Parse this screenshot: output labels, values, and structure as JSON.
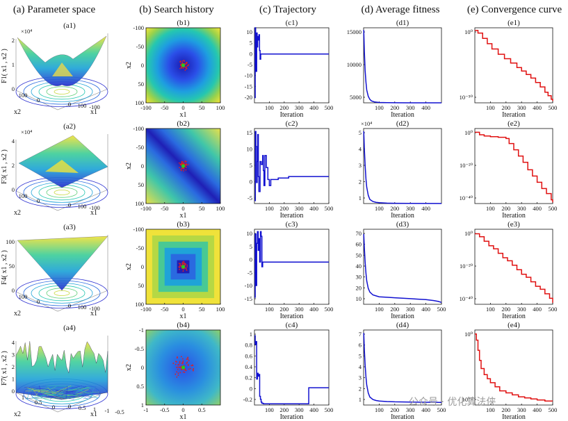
{
  "column_headers": [
    "(a) Parameter space",
    "(b) Search history",
    "(c) Trajectory",
    "(d) Average fitness",
    "(e) Convergence curve"
  ],
  "watermark": "公众号 · 优化算法侠",
  "colors": {
    "trajectory": "#1010d0",
    "fitness": "#1010d0",
    "convergence": "#e01010",
    "best_point": "#22cc22",
    "history_points": "#e02020"
  },
  "rows": [
    {
      "a": {
        "title": "(a1)",
        "zlabel": "F1( x1 , x2 )",
        "exponent": "×10⁴",
        "zticks": [
          "0",
          "1",
          "2"
        ],
        "xlabel": "x1",
        "ylabel": "x2",
        "xticks": [
          "0",
          "100",
          "-100"
        ],
        "yticks": [
          "100",
          "0"
        ]
      },
      "b": {
        "title": "(b1)",
        "xlabel": "x1",
        "ylabel": "x2",
        "xticks": [
          "-100",
          "-50",
          "0",
          "50",
          "100"
        ],
        "yticks": [
          "-100",
          "-50",
          "0",
          "50",
          "100"
        ],
        "pattern": "radial"
      },
      "c": {
        "title": "(c1)",
        "xlabel": "Iteration",
        "xticks": [
          "100",
          "200",
          "300",
          "400",
          "500"
        ],
        "yticks": [
          "10",
          "5",
          "0",
          "-5",
          "-10",
          "-15",
          "-20"
        ]
      },
      "d": {
        "title": "(d1)",
        "xlabel": "Iteration",
        "xticks": [
          "100",
          "200",
          "300",
          "400"
        ],
        "yticks": [
          "15000",
          "10000",
          "5000"
        ]
      },
      "e": {
        "title": "(e1)",
        "xlabel": "Iteration",
        "xticks": [
          "100",
          "200",
          "300",
          "400",
          "500"
        ],
        "yticks": [
          "10⁰",
          "10⁻⁵⁰"
        ]
      }
    },
    {
      "a": {
        "title": "(a2)",
        "zlabel": "F3( x1 , x2 )",
        "exponent": "×10⁴",
        "zticks": [
          "0",
          "2",
          "4"
        ],
        "xlabel": "x1",
        "ylabel": "x2",
        "xticks": [
          "0",
          "100",
          "-100"
        ],
        "yticks": [
          "100",
          "0"
        ]
      },
      "b": {
        "title": "(b2)",
        "xlabel": "x1",
        "ylabel": "x2",
        "xticks": [
          "-100",
          "-50",
          "0",
          "50",
          "100"
        ],
        "yticks": [
          "-100",
          "-50",
          "0",
          "50",
          "100"
        ],
        "pattern": "diagonal"
      },
      "c": {
        "title": "(c2)",
        "xlabel": "Iteration",
        "xticks": [
          "100",
          "200",
          "300",
          "400",
          "500"
        ],
        "yticks": [
          "15",
          "10",
          "5",
          "0",
          "-5"
        ]
      },
      "d": {
        "title": "(d2)",
        "xlabel": "Iteration",
        "exponent": "×10⁴",
        "xticks": [
          "100",
          "200",
          "300",
          "400"
        ],
        "yticks": [
          "5",
          "4",
          "3",
          "2",
          "1"
        ]
      },
      "e": {
        "title": "(e2)",
        "xlabel": "Iteration",
        "xticks": [
          "100",
          "200",
          "300",
          "400",
          "500"
        ],
        "yticks": [
          "10⁰",
          "10⁻²⁰",
          "10⁻⁴⁰"
        ]
      }
    },
    {
      "a": {
        "title": "(a3)",
        "zlabel": "F4( x1 , x2 )",
        "exponent": "",
        "zticks": [
          "0",
          "50",
          "100"
        ],
        "xlabel": "x1",
        "ylabel": "x2",
        "xticks": [
          "0",
          "100",
          "-100"
        ],
        "yticks": [
          "100",
          "0"
        ]
      },
      "b": {
        "title": "(b3)",
        "xlabel": "x1",
        "ylabel": "x2",
        "xticks": [
          "-100",
          "-50",
          "0",
          "50",
          "100"
        ],
        "yticks": [
          "-100",
          "-50",
          "0",
          "50",
          "100"
        ],
        "pattern": "square"
      },
      "c": {
        "title": "(c3)",
        "xlabel": "Iteration",
        "xticks": [
          "100",
          "200",
          "300",
          "400",
          "500"
        ],
        "yticks": [
          "10",
          "5",
          "0",
          "-5",
          "-10",
          "-15"
        ]
      },
      "d": {
        "title": "(d3)",
        "xlabel": "Iteration",
        "xticks": [
          "100",
          "200",
          "300",
          "400",
          "500"
        ],
        "yticks": [
          "70",
          "60",
          "50",
          "40",
          "30",
          "20",
          "10"
        ]
      },
      "e": {
        "title": "(e3)",
        "xlabel": "Iteration",
        "xticks": [
          "100",
          "200",
          "300",
          "400",
          "500"
        ],
        "yticks": [
          "10⁰",
          "10⁻²⁰",
          "10⁻⁴⁰"
        ]
      }
    },
    {
      "a": {
        "title": "(a4)",
        "zlabel": "F7( x1 , x2 )",
        "exponent": "",
        "zticks": [
          "0",
          "1",
          "2",
          "3",
          "4"
        ],
        "xlabel": "x1",
        "ylabel": "x2",
        "xticks": [
          "0",
          "0.5",
          "1",
          "-1",
          "-0.5"
        ],
        "yticks": [
          "1",
          "0.5",
          "0"
        ]
      },
      "b": {
        "title": "(b4)",
        "xlabel": "x1",
        "ylabel": "x2",
        "xticks": [
          "-1",
          "-0.5",
          "0",
          "0.5"
        ],
        "yticks": [
          "-1",
          "-0.5",
          "0",
          "0.5",
          "1"
        ],
        "pattern": "noise"
      },
      "c": {
        "title": "(c4)",
        "xlabel": "Iteration",
        "xticks": [
          "100",
          "200",
          "300",
          "400",
          "500"
        ],
        "yticks": [
          "1",
          "0.8",
          "0.6",
          "0.4",
          "0.2",
          "0",
          "-0.2"
        ]
      },
      "d": {
        "title": "(d4)",
        "xlabel": "Iteration",
        "xticks": [
          "100",
          "200",
          "300",
          "400",
          "500"
        ],
        "yticks": [
          "7",
          "6",
          "5",
          "4",
          "3",
          "2",
          "1"
        ]
      },
      "e": {
        "title": "(e4)",
        "xlabel": "Iteration",
        "xticks": [
          "100",
          "200",
          "300",
          "400",
          "500"
        ],
        "yticks": [
          "10⁰",
          "10⁻²"
        ]
      }
    }
  ],
  "chart_data": [
    {
      "type": "line",
      "title": "(c1)",
      "xlabel": "Iteration",
      "xlim": [
        0,
        500
      ],
      "ylim": [
        -28,
        15
      ],
      "series": [
        {
          "name": "trajectory",
          "x": [
            1,
            5,
            8,
            12,
            15,
            18,
            22,
            26,
            30,
            34,
            38,
            42,
            500
          ],
          "y": [
            -25,
            15,
            5,
            -10,
            12,
            4,
            10,
            8,
            11,
            2,
            -3,
            0,
            0
          ]
        }
      ]
    },
    {
      "type": "line",
      "title": "(d1)",
      "xlabel": "Iteration",
      "xlim": [
        0,
        500
      ],
      "ylim": [
        0,
        17500
      ],
      "series": [
        {
          "name": "average fitness",
          "x": [
            1,
            5,
            10,
            15,
            20,
            30,
            40,
            50,
            70,
            100,
            150,
            200,
            300,
            500
          ],
          "y": [
            17000,
            12000,
            7500,
            4800,
            3000,
            1500,
            800,
            450,
            200,
            80,
            30,
            10,
            5,
            2
          ]
        }
      ]
    },
    {
      "type": "line",
      "title": "(e1)",
      "xlabel": "Iteration",
      "xlim": [
        0,
        500
      ],
      "ylim": [
        -80,
        5
      ],
      "ylog": true,
      "series": [
        {
          "name": "best fitness (log10)",
          "x": [
            0,
            20,
            50,
            80,
            110,
            150,
            190,
            230,
            270,
            300,
            330,
            360,
            390,
            420,
            450,
            470,
            490,
            500
          ],
          "y": [
            2,
            -1,
            -7,
            -13,
            -19,
            -25,
            -30,
            -35,
            -40,
            -44,
            -48,
            -52,
            -57,
            -62,
            -68,
            -72,
            -76,
            -78
          ]
        }
      ]
    },
    {
      "type": "line",
      "title": "(c2)",
      "xlabel": "Iteration",
      "xlim": [
        0,
        500
      ],
      "ylim": [
        -9,
        16
      ],
      "series": [
        {
          "name": "trajectory",
          "x": [
            1,
            6,
            10,
            14,
            18,
            22,
            26,
            30,
            38,
            46,
            55,
            60,
            64,
            70,
            80,
            90,
            100,
            110,
            130,
            160,
            200,
            230,
            240,
            500
          ],
          "y": [
            -8,
            15,
            10,
            -2,
            5,
            14,
            0,
            -5,
            5,
            4,
            7,
            2,
            -3,
            7,
            3,
            -1,
            -3,
            -1,
            -1,
            -0.5,
            -0.5,
            0,
            0,
            0
          ]
        }
      ]
    },
    {
      "type": "line",
      "title": "(d2)",
      "xlabel": "Iteration",
      "xlim": [
        0,
        500
      ],
      "ylim": [
        0,
        55000
      ],
      "series": [
        {
          "name": "average fitness",
          "x": [
            1,
            5,
            10,
            15,
            20,
            30,
            40,
            60,
            80,
            100,
            150,
            200,
            300,
            500
          ],
          "y": [
            53000,
            40000,
            28000,
            18000,
            12000,
            6000,
            3000,
            1500,
            900,
            600,
            300,
            200,
            100,
            50
          ]
        }
      ]
    },
    {
      "type": "line",
      "title": "(e2)",
      "xlabel": "Iteration",
      "xlim": [
        0,
        500
      ],
      "ylim": [
        -55,
        5
      ],
      "ylog": true,
      "series": [
        {
          "name": "best fitness (log10)",
          "x": [
            0,
            30,
            60,
            100,
            150,
            200,
            220,
            250,
            280,
            310,
            340,
            370,
            400,
            430,
            460,
            490,
            500
          ],
          "y": [
            2,
            0,
            -1,
            -1.5,
            -2,
            -3,
            -7,
            -12,
            -17,
            -22,
            -28,
            -33,
            -38,
            -43,
            -47,
            -52,
            -54
          ]
        }
      ]
    },
    {
      "type": "line",
      "title": "(c3)",
      "xlabel": "Iteration",
      "xlim": [
        0,
        500
      ],
      "ylim": [
        -18,
        14
      ],
      "series": [
        {
          "name": "trajectory",
          "x": [
            1,
            5,
            10,
            15,
            20,
            25,
            30,
            35,
            40,
            45,
            50,
            55,
            60,
            500
          ],
          "y": [
            -15,
            12,
            -10,
            8,
            13,
            5,
            10,
            0,
            13,
            11,
            -2,
            0,
            0,
            0
          ]
        }
      ]
    },
    {
      "type": "line",
      "title": "(d3)",
      "xlabel": "Iteration",
      "xlim": [
        0,
        500
      ],
      "ylim": [
        0,
        80
      ],
      "series": [
        {
          "name": "average fitness",
          "x": [
            1,
            5,
            10,
            15,
            20,
            30,
            40,
            60,
            80,
            100,
            150,
            200,
            250,
            300,
            350,
            400,
            450,
            480,
            500
          ],
          "y": [
            75,
            60,
            45,
            33,
            25,
            17,
            13,
            10,
            9,
            8,
            7.5,
            7,
            6.5,
            6,
            5.5,
            5,
            4,
            3,
            2
          ]
        }
      ]
    },
    {
      "type": "line",
      "title": "(e3)",
      "xlabel": "Iteration",
      "xlim": [
        0,
        500
      ],
      "ylim": [
        -45,
        5
      ],
      "ylog": true,
      "series": [
        {
          "name": "best fitness (log10)",
          "x": [
            0,
            30,
            60,
            90,
            120,
            150,
            180,
            210,
            240,
            270,
            300,
            330,
            360,
            390,
            420,
            450,
            480,
            500
          ],
          "y": [
            2,
            0,
            -3,
            -6,
            -8,
            -11,
            -14,
            -16,
            -19,
            -22,
            -25,
            -27,
            -30,
            -33,
            -35,
            -38,
            -41,
            -44
          ]
        }
      ]
    },
    {
      "type": "line",
      "title": "(c4)",
      "xlabel": "Iteration",
      "xlim": [
        0,
        500
      ],
      "ylim": [
        -0.25,
        1.05
      ],
      "series": [
        {
          "name": "trajectory",
          "x": [
            1,
            5,
            10,
            15,
            20,
            25,
            30,
            35,
            40,
            45,
            50,
            55,
            60,
            70,
            80,
            100,
            200,
            300,
            360,
            365,
            370,
            500
          ],
          "y": [
            0.95,
            0.8,
            0.85,
            0.2,
            0.3,
            0.25,
            0.28,
            -0.1,
            -0.15,
            -0.2,
            -0.22,
            -0.22,
            -0.23,
            -0.23,
            -0.23,
            -0.23,
            -0.23,
            -0.23,
            -0.23,
            0.05,
            0.05,
            0.05
          ]
        }
      ]
    },
    {
      "type": "line",
      "title": "(d4)",
      "xlabel": "Iteration",
      "xlim": [
        0,
        500
      ],
      "ylim": [
        0,
        7.5
      ],
      "series": [
        {
          "name": "average fitness",
          "x": [
            1,
            5,
            10,
            15,
            20,
            30,
            40,
            60,
            80,
            100,
            150,
            200,
            300,
            400,
            500
          ],
          "y": [
            7.2,
            5.5,
            4,
            2.8,
            2,
            1.2,
            0.8,
            0.55,
            0.45,
            0.4,
            0.35,
            0.32,
            0.3,
            0.28,
            0.26
          ]
        }
      ]
    },
    {
      "type": "line",
      "title": "(e4)",
      "xlabel": "Iteration",
      "xlim": [
        0,
        500
      ],
      "ylim": [
        -3.5,
        0.2
      ],
      "ylog": true,
      "series": [
        {
          "name": "best fitness (log10)",
          "x": [
            0,
            10,
            20,
            30,
            40,
            60,
            80,
            100,
            130,
            160,
            200,
            240,
            280,
            320,
            360,
            400,
            450,
            500
          ],
          "y": [
            0,
            -0.3,
            -0.8,
            -1.3,
            -1.7,
            -2.0,
            -2.2,
            -2.4,
            -2.6,
            -2.8,
            -2.9,
            -3.0,
            -3.1,
            -3.15,
            -3.2,
            -3.25,
            -3.3,
            -3.3
          ]
        }
      ]
    }
  ]
}
